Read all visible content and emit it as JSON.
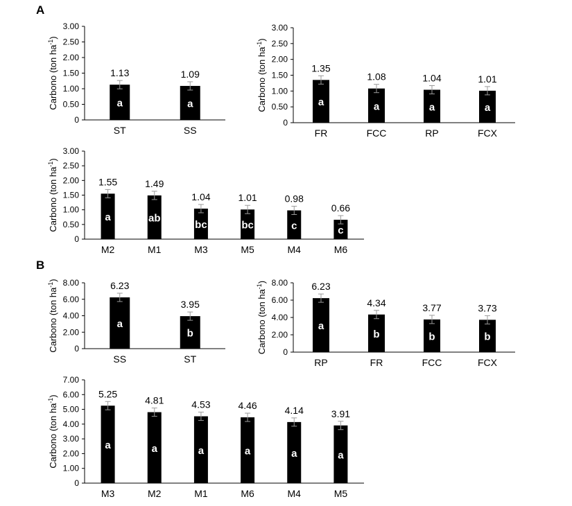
{
  "panel_labels": [
    "A",
    "B"
  ],
  "chart_data": [
    {
      "type": "bar",
      "panel": "A",
      "categories": [
        "ST",
        "SS"
      ],
      "values": [
        1.13,
        1.09
      ],
      "value_labels": [
        "1.13",
        "1.09"
      ],
      "letters": [
        "a",
        "a"
      ],
      "ylabel": "Carbono (ton ha-1)",
      "ylim": [
        0,
        3
      ],
      "yticks": [
        "0",
        "0.50",
        "1.00",
        "1.50",
        "2.00",
        "2.50",
        "3.00"
      ],
      "error_bars": true,
      "grid": false,
      "bar_color": "#000000"
    },
    {
      "type": "bar",
      "panel": "A",
      "categories": [
        "FR",
        "FCC",
        "RP",
        "FCX"
      ],
      "values": [
        1.35,
        1.08,
        1.04,
        1.01
      ],
      "value_labels": [
        "1.35",
        "1.08",
        "1.04",
        "1.01"
      ],
      "letters": [
        "a",
        "a",
        "a",
        "a"
      ],
      "ylabel": "Carbono (ton ha-1)",
      "ylim": [
        0,
        3
      ],
      "yticks": [
        "0",
        "0.50",
        "1.00",
        "1.50",
        "2.00",
        "2.50",
        "3.00"
      ],
      "error_bars": true,
      "grid": false,
      "bar_color": "#000000"
    },
    {
      "type": "bar",
      "panel": "A",
      "categories": [
        "M2",
        "M1",
        "M3",
        "M5",
        "M4",
        "M6"
      ],
      "values": [
        1.55,
        1.49,
        1.04,
        1.01,
        0.98,
        0.66
      ],
      "value_labels": [
        "1.55",
        "1.49",
        "1.04",
        "1.01",
        "0.98",
        "0.66"
      ],
      "letters": [
        "a",
        "ab",
        "bc",
        "bc",
        "c",
        "c"
      ],
      "ylabel": "Carbono (ton ha-1)",
      "ylim": [
        0,
        3
      ],
      "yticks": [
        "0",
        "0.50",
        "1.00",
        "1.50",
        "2.00",
        "2.50",
        "3.00"
      ],
      "error_bars": true,
      "grid": false,
      "bar_color": "#000000"
    },
    {
      "type": "bar",
      "panel": "B",
      "categories": [
        "SS",
        "ST"
      ],
      "values": [
        6.23,
        3.95
      ],
      "value_labels": [
        "6.23",
        "3.95"
      ],
      "letters": [
        "a",
        "b"
      ],
      "ylabel": "Carbono (ton ha-1)",
      "ylim": [
        0,
        8
      ],
      "yticks": [
        "0",
        "2.00",
        "4.00",
        "6.00",
        "8.00"
      ],
      "error_bars": true,
      "grid": false,
      "bar_color": "#000000"
    },
    {
      "type": "bar",
      "panel": "B",
      "categories": [
        "RP",
        "FR",
        "FCC",
        "FCX"
      ],
      "values": [
        6.23,
        4.34,
        3.77,
        3.73
      ],
      "value_labels": [
        "6.23",
        "4.34",
        "3.77",
        "3.73"
      ],
      "letters": [
        "a",
        "b",
        "b",
        "b"
      ],
      "ylabel": "Carbono (ton ha-1)",
      "ylim": [
        0,
        8
      ],
      "yticks": [
        "0",
        "2.00",
        "4.00",
        "6.00",
        "8.00"
      ],
      "error_bars": true,
      "grid": false,
      "bar_color": "#000000"
    },
    {
      "type": "bar",
      "panel": "B",
      "categories": [
        "M3",
        "M2",
        "M1",
        "M6",
        "M4",
        "M5"
      ],
      "values": [
        5.25,
        4.81,
        4.53,
        4.46,
        4.14,
        3.91
      ],
      "value_labels": [
        "5.25",
        "4.81",
        "4.53",
        "4.46",
        "4.14",
        "3.91"
      ],
      "letters": [
        "a",
        "a",
        "a",
        "a",
        "a",
        "a"
      ],
      "ylabel": "Carbono (ton ha-1)",
      "ylim": [
        0,
        7
      ],
      "yticks": [
        "0",
        "1.00",
        "2.00",
        "3.00",
        "4.00",
        "5.00",
        "6.00",
        "7.00"
      ],
      "error_bars": true,
      "grid": false,
      "bar_color": "#000000"
    }
  ]
}
